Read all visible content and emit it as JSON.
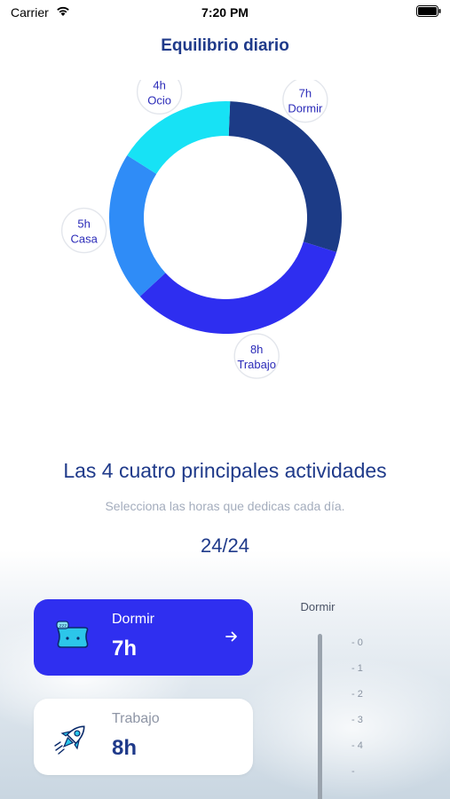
{
  "status_bar": {
    "carrier": "Carrier",
    "time": "7:20 PM"
  },
  "title": "Equilibrio diario",
  "chart_data": {
    "type": "pie",
    "categories": [
      "Dormir",
      "Trabajo",
      "Casa",
      "Ocio"
    ],
    "values": [
      7,
      8,
      5,
      4
    ],
    "unit": "h",
    "colors": [
      "#1c3b86",
      "#2e2ef0",
      "#2f8cf7",
      "#17e2f5"
    ],
    "labels": [
      {
        "hours": "7h",
        "name": "Dormir"
      },
      {
        "hours": "8h",
        "name": "Trabajo"
      },
      {
        "hours": "5h",
        "name": "Casa"
      },
      {
        "hours": "4h",
        "name": "Ocio"
      }
    ]
  },
  "activities": {
    "heading": "Las 4 cuatro principales actividades",
    "subtitle": "Selecciona las horas que dedicas cada día.",
    "total": "24/24",
    "cards": [
      {
        "name": "Dormir",
        "hours": "7h",
        "icon": "pillow-icon",
        "selected": true
      },
      {
        "name": "Trabajo",
        "hours": "8h",
        "icon": "rocket-icon",
        "selected": false
      }
    ]
  },
  "picker": {
    "label": "Dormir",
    "ticks": [
      "- 0",
      "- 1",
      "- 2",
      "- 3",
      "- 4",
      "-"
    ]
  }
}
